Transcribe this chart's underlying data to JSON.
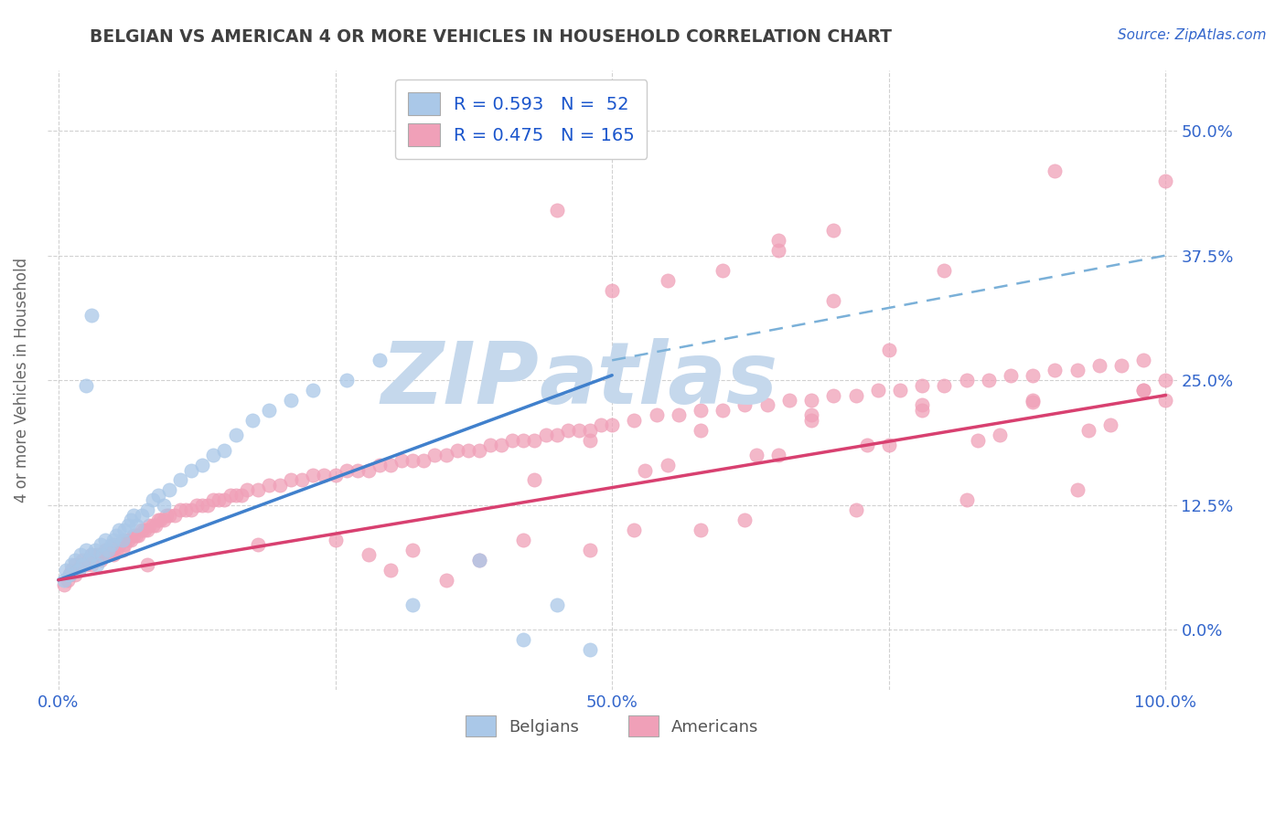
{
  "title": "BELGIAN VS AMERICAN 4 OR MORE VEHICLES IN HOUSEHOLD CORRELATION CHART",
  "source_text": "Source: ZipAtlas.com",
  "ylabel": "4 or more Vehicles in Household",
  "xlim": [
    -0.01,
    1.01
  ],
  "ylim": [
    -0.06,
    0.56
  ],
  "xticks": [
    0.0,
    0.25,
    0.5,
    0.75,
    1.0
  ],
  "xticklabels": [
    "0.0%",
    "",
    "50.0%",
    "",
    "100.0%"
  ],
  "yticks": [
    0.0,
    0.125,
    0.25,
    0.375,
    0.5
  ],
  "yticklabels": [
    "0.0%",
    "12.5%",
    "25.0%",
    "37.5%",
    "50.0%"
  ],
  "belgian_R": 0.593,
  "belgian_N": 52,
  "american_R": 0.475,
  "american_N": 165,
  "belgian_color": "#aac8e8",
  "american_color": "#f0a0b8",
  "belgian_line_color": "#4080cc",
  "american_line_color": "#d84070",
  "dashed_line_color": "#7ab0d8",
  "background_color": "#ffffff",
  "grid_color": "#cccccc",
  "title_color": "#404040",
  "yticklabel_color": "#3366cc",
  "xticklabel_color": "#3366cc",
  "source_color": "#3366cc",
  "legend_text_color": "#1a55cc",
  "watermark_color": "#c5d8ec",
  "bel_line_start_x": 0.0,
  "bel_line_end_x": 0.5,
  "bel_line_start_y": 0.05,
  "bel_line_end_y": 0.255,
  "ame_line_start_x": 0.0,
  "ame_line_end_x": 1.0,
  "ame_line_start_y": 0.05,
  "ame_line_end_y": 0.235,
  "dash_line_start_x": 0.5,
  "dash_line_end_x": 1.0,
  "dash_line_start_y": 0.27,
  "dash_line_end_y": 0.375,
  "bel_x": [
    0.005,
    0.007,
    0.01,
    0.012,
    0.015,
    0.018,
    0.02,
    0.022,
    0.025,
    0.027,
    0.03,
    0.033,
    0.035,
    0.038,
    0.04,
    0.042,
    0.045,
    0.048,
    0.05,
    0.052,
    0.055,
    0.058,
    0.06,
    0.063,
    0.065,
    0.068,
    0.07,
    0.075,
    0.08,
    0.085,
    0.09,
    0.095,
    0.1,
    0.11,
    0.12,
    0.13,
    0.14,
    0.15,
    0.16,
    0.175,
    0.19,
    0.21,
    0.23,
    0.26,
    0.29,
    0.32,
    0.38,
    0.42,
    0.45,
    0.48,
    0.03,
    0.025
  ],
  "bel_y": [
    0.05,
    0.06,
    0.055,
    0.065,
    0.07,
    0.06,
    0.075,
    0.065,
    0.08,
    0.07,
    0.075,
    0.08,
    0.065,
    0.085,
    0.075,
    0.09,
    0.08,
    0.085,
    0.09,
    0.095,
    0.1,
    0.09,
    0.1,
    0.105,
    0.11,
    0.115,
    0.105,
    0.115,
    0.12,
    0.13,
    0.135,
    0.125,
    0.14,
    0.15,
    0.16,
    0.165,
    0.175,
    0.18,
    0.195,
    0.21,
    0.22,
    0.23,
    0.24,
    0.25,
    0.27,
    0.025,
    0.07,
    -0.01,
    0.025,
    -0.02,
    0.315,
    0.245
  ],
  "ame_x": [
    0.005,
    0.008,
    0.01,
    0.012,
    0.015,
    0.015,
    0.018,
    0.02,
    0.022,
    0.025,
    0.027,
    0.03,
    0.03,
    0.033,
    0.035,
    0.038,
    0.04,
    0.042,
    0.045,
    0.048,
    0.05,
    0.05,
    0.052,
    0.055,
    0.058,
    0.06,
    0.06,
    0.063,
    0.065,
    0.068,
    0.07,
    0.072,
    0.075,
    0.078,
    0.08,
    0.082,
    0.085,
    0.088,
    0.09,
    0.092,
    0.095,
    0.098,
    0.1,
    0.105,
    0.11,
    0.115,
    0.12,
    0.125,
    0.13,
    0.135,
    0.14,
    0.145,
    0.15,
    0.155,
    0.16,
    0.165,
    0.17,
    0.18,
    0.19,
    0.2,
    0.21,
    0.22,
    0.23,
    0.24,
    0.25,
    0.26,
    0.27,
    0.28,
    0.29,
    0.3,
    0.31,
    0.32,
    0.33,
    0.34,
    0.35,
    0.36,
    0.37,
    0.38,
    0.39,
    0.4,
    0.41,
    0.42,
    0.43,
    0.44,
    0.45,
    0.46,
    0.47,
    0.48,
    0.49,
    0.5,
    0.52,
    0.54,
    0.56,
    0.58,
    0.6,
    0.62,
    0.64,
    0.66,
    0.68,
    0.7,
    0.72,
    0.74,
    0.76,
    0.78,
    0.8,
    0.82,
    0.84,
    0.86,
    0.88,
    0.9,
    0.92,
    0.94,
    0.96,
    0.98,
    1.0,
    0.65,
    0.7,
    0.75,
    0.5,
    0.55,
    0.6,
    0.65,
    0.7,
    0.45,
    0.35,
    0.3,
    0.25,
    0.32,
    0.42,
    0.52,
    0.62,
    0.72,
    0.82,
    0.92,
    0.38,
    0.48,
    0.58,
    0.28,
    0.18,
    0.08,
    0.68,
    0.78,
    0.88,
    0.98,
    0.43,
    0.53,
    0.63,
    0.73,
    0.83,
    0.93,
    0.48,
    0.58,
    0.68,
    0.78,
    0.88,
    0.98,
    0.55,
    0.65,
    0.75,
    0.85,
    0.95,
    1.0,
    1.0,
    0.9,
    0.8
  ],
  "ame_y": [
    0.045,
    0.05,
    0.055,
    0.06,
    0.055,
    0.065,
    0.06,
    0.065,
    0.07,
    0.065,
    0.07,
    0.065,
    0.075,
    0.07,
    0.075,
    0.07,
    0.075,
    0.08,
    0.075,
    0.08,
    0.075,
    0.085,
    0.08,
    0.085,
    0.08,
    0.085,
    0.09,
    0.09,
    0.09,
    0.095,
    0.095,
    0.095,
    0.1,
    0.1,
    0.1,
    0.105,
    0.105,
    0.105,
    0.11,
    0.11,
    0.11,
    0.115,
    0.115,
    0.115,
    0.12,
    0.12,
    0.12,
    0.125,
    0.125,
    0.125,
    0.13,
    0.13,
    0.13,
    0.135,
    0.135,
    0.135,
    0.14,
    0.14,
    0.145,
    0.145,
    0.15,
    0.15,
    0.155,
    0.155,
    0.155,
    0.16,
    0.16,
    0.16,
    0.165,
    0.165,
    0.17,
    0.17,
    0.17,
    0.175,
    0.175,
    0.18,
    0.18,
    0.18,
    0.185,
    0.185,
    0.19,
    0.19,
    0.19,
    0.195,
    0.195,
    0.2,
    0.2,
    0.2,
    0.205,
    0.205,
    0.21,
    0.215,
    0.215,
    0.22,
    0.22,
    0.225,
    0.225,
    0.23,
    0.23,
    0.235,
    0.235,
    0.24,
    0.24,
    0.245,
    0.245,
    0.25,
    0.25,
    0.255,
    0.255,
    0.26,
    0.26,
    0.265,
    0.265,
    0.27,
    0.25,
    0.39,
    0.33,
    0.28,
    0.34,
    0.35,
    0.36,
    0.38,
    0.4,
    0.42,
    0.05,
    0.06,
    0.09,
    0.08,
    0.09,
    0.1,
    0.11,
    0.12,
    0.13,
    0.14,
    0.07,
    0.08,
    0.1,
    0.075,
    0.085,
    0.065,
    0.215,
    0.225,
    0.23,
    0.24,
    0.15,
    0.16,
    0.175,
    0.185,
    0.19,
    0.2,
    0.19,
    0.2,
    0.21,
    0.22,
    0.228,
    0.24,
    0.165,
    0.175,
    0.185,
    0.195,
    0.205,
    0.23,
    0.45,
    0.46,
    0.36
  ]
}
